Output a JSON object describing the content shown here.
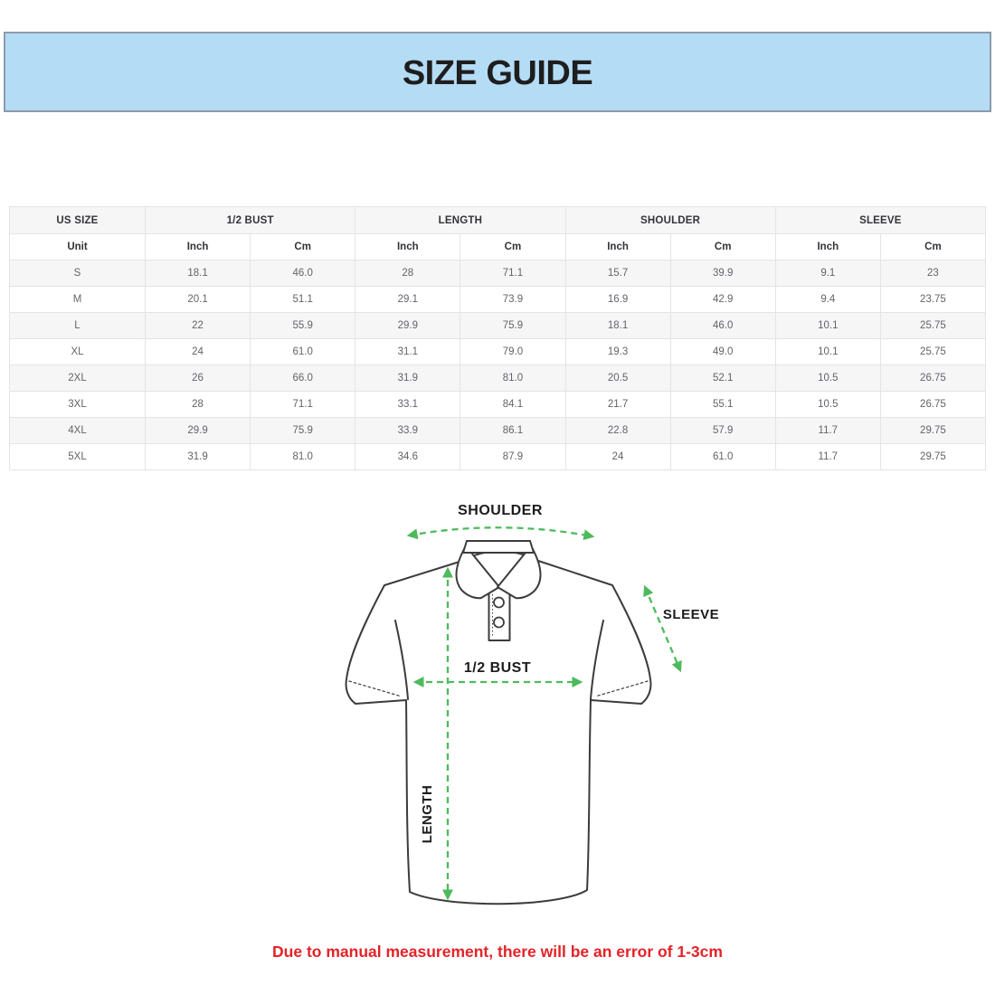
{
  "banner": {
    "title": "SIZE GUIDE"
  },
  "table": {
    "group_headers": [
      {
        "label": "US SIZE",
        "span": 1
      },
      {
        "label": "1/2 BUST",
        "span": 2
      },
      {
        "label": "LENGTH",
        "span": 2
      },
      {
        "label": "SHOULDER",
        "span": 2
      },
      {
        "label": "SLEEVE",
        "span": 2
      }
    ],
    "unit_headers": [
      "Unit",
      "Inch",
      "Cm",
      "Inch",
      "Cm",
      "Inch",
      "Cm",
      "Inch",
      "Cm"
    ],
    "rows": [
      {
        "size": "S",
        "values": [
          "18.1",
          "46.0",
          "28",
          "71.1",
          "15.7",
          "39.9",
          "9.1",
          "23"
        ]
      },
      {
        "size": "M",
        "values": [
          "20.1",
          "51.1",
          "29.1",
          "73.9",
          "16.9",
          "42.9",
          "9.4",
          "23.75"
        ]
      },
      {
        "size": "L",
        "values": [
          "22",
          "55.9",
          "29.9",
          "75.9",
          "18.1",
          "46.0",
          "10.1",
          "25.75"
        ]
      },
      {
        "size": "XL",
        "values": [
          "24",
          "61.0",
          "31.1",
          "79.0",
          "19.3",
          "49.0",
          "10.1",
          "25.75"
        ]
      },
      {
        "size": "2XL",
        "values": [
          "26",
          "66.0",
          "31.9",
          "81.0",
          "20.5",
          "52.1",
          "10.5",
          "26.75"
        ]
      },
      {
        "size": "3XL",
        "values": [
          "28",
          "71.1",
          "33.1",
          "84.1",
          "21.7",
          "55.1",
          "10.5",
          "26.75"
        ]
      },
      {
        "size": "4XL",
        "values": [
          "29.9",
          "75.9",
          "33.9",
          "86.1",
          "22.8",
          "57.9",
          "11.7",
          "29.75"
        ]
      },
      {
        "size": "5XL",
        "values": [
          "31.9",
          "81.0",
          "34.6",
          "87.9",
          "24",
          "61.0",
          "11.7",
          "29.75"
        ]
      }
    ]
  },
  "diagram": {
    "shoulder_label": "SHOULDER",
    "sleeve_label": "SLEEVE",
    "bust_label": "1/2 BUST",
    "length_label": "LENGTH"
  },
  "footnote": {
    "text": "Due to manual measurement, there will be an error of 1-3cm"
  },
  "colors": {
    "banner_bg": "#b5dcf5",
    "banner_border": "#8b9bab",
    "arrow_green": "#4eba5c",
    "footnote_red": "#e42328",
    "shirt_outline": "#3c3c3c",
    "table_alt_row": "#f6f6f7",
    "table_border": "#e4e4e7"
  }
}
